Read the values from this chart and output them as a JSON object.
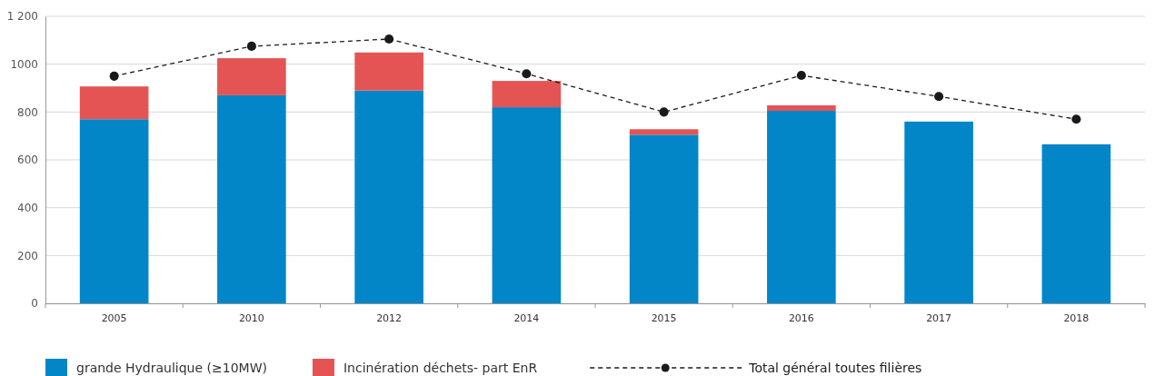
{
  "chart_data": {
    "type": "bar",
    "stacked": true,
    "categories": [
      "2005",
      "2010",
      "2012",
      "2014",
      "2015",
      "2016",
      "2017",
      "2018"
    ],
    "series": [
      {
        "name": "grande Hydraulique (≥10MW)",
        "color": "#0286c7",
        "values": [
          770,
          870,
          890,
          820,
          705,
          805,
          760,
          665
        ]
      },
      {
        "name": "Incinération déchets- part EnR",
        "color": "#e55454",
        "values": [
          137,
          155,
          159,
          110,
          23,
          23,
          0,
          0
        ]
      },
      {
        "name": "Total général toutes filières",
        "type": "line",
        "color": "#1a1a1a",
        "marker": "circle",
        "line_style": "dashed",
        "values": [
          950,
          1075,
          1105,
          960,
          800,
          953,
          865,
          770
        ]
      }
    ],
    "ylim": [
      0,
      1200
    ],
    "yticks": [
      0,
      200,
      400,
      600,
      800,
      1000,
      {
        "value": 1200,
        "label": "1 200"
      }
    ],
    "grid": "y",
    "legend": "bottom"
  }
}
